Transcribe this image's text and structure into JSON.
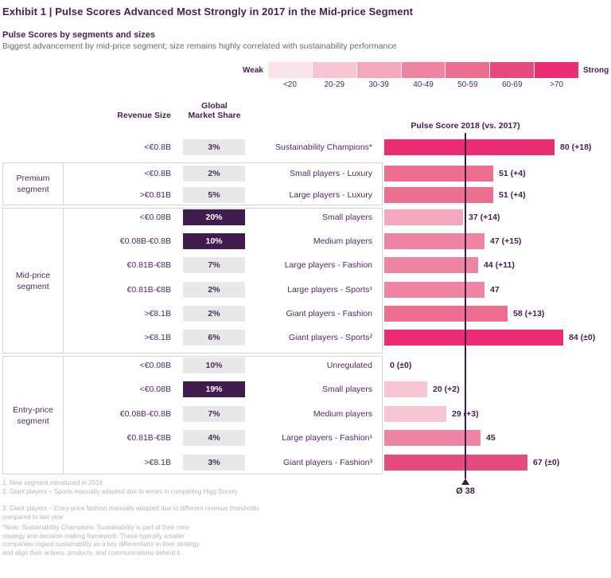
{
  "title": "Exhibit 1 | Pulse Scores Advanced Most Strongly in 2017 in the Mid-price Segment",
  "subtitle": "Pulse Scores by segments and sizes",
  "description": "Biggest advancement by mid-price segment; size remains highly correlated with sustainability performance",
  "columns": {
    "revenue": "Revenue Size",
    "market_share": "Global\nMarket Share",
    "score": "Pulse Score 2018 (vs. 2017)"
  },
  "chart_data": {
    "type": "bar",
    "title": "Pulse Score 2018 (vs. 2017)",
    "xlim": [
      0,
      100
    ],
    "grid": false,
    "legend": {
      "weak_label": "Weak",
      "strong_label": "Strong",
      "buckets": [
        {
          "label": "<20",
          "min": 0,
          "color": "#fbe3ec"
        },
        {
          "label": "20-29",
          "min": 20,
          "color": "#f8c5d4"
        },
        {
          "label": "30-39",
          "min": 30,
          "color": "#f3a8bd"
        },
        {
          "label": "40-49",
          "min": 40,
          "color": "#ef85a2"
        },
        {
          "label": "50-59",
          "min": 50,
          "color": "#ed6f90"
        },
        {
          "label": "60-69",
          "min": 60,
          "color": "#e74a7e"
        },
        {
          "label": ">70",
          "min": 70,
          "color": "#ec2d74"
        }
      ]
    },
    "average": {
      "label": "Ø 38",
      "value": 38
    },
    "groups": [
      {
        "segment": "",
        "rows": [
          {
            "revenue": "<€0.8B",
            "share": "3%",
            "share_highlight": false,
            "label": "Sustainability Champions*",
            "value": 80,
            "value_label": "80 (+18)"
          }
        ]
      },
      {
        "segment": "Premium\nsegment",
        "rows": [
          {
            "revenue": "<€0.8B",
            "share": "2%",
            "share_highlight": false,
            "label": "Small players - Luxury",
            "value": 51,
            "value_label": "51 (+4)"
          },
          {
            "revenue": ">€0.81B",
            "share": "5%",
            "share_highlight": false,
            "label": "Large players - Luxury",
            "value": 51,
            "value_label": "51 (+4)"
          }
        ]
      },
      {
        "segment": "Mid-price\nsegment",
        "rows": [
          {
            "revenue": "<€0.08B",
            "share": "20%",
            "share_highlight": true,
            "label": "Small players",
            "value": 37,
            "value_label": "37 (+14)"
          },
          {
            "revenue": "€0.08B-€0.8B",
            "share": "10%",
            "share_highlight": true,
            "label": "Medium players",
            "value": 47,
            "value_label": "47 (+15)"
          },
          {
            "revenue": "€0.81B-€8B",
            "share": "7%",
            "share_highlight": false,
            "label": "Large players - Fashion",
            "value": 44,
            "value_label": "44 (+11)"
          },
          {
            "revenue": "€0.81B-€8B",
            "share": "2%",
            "share_highlight": false,
            "label": "Large players - Sports¹",
            "value": 47,
            "value_label": "47"
          },
          {
            "revenue": ">€8.1B",
            "share": "2%",
            "share_highlight": false,
            "label": "Giant players - Fashion",
            "value": 58,
            "value_label": "58 (+13)"
          },
          {
            "revenue": ">€8.1B",
            "share": "6%",
            "share_highlight": false,
            "label": "Giant players - Sports²",
            "value": 84,
            "value_label": "84 (±0)"
          }
        ]
      },
      {
        "segment": "Entry-price\nsegment",
        "rows": [
          {
            "revenue": "<€0.08B",
            "share": "10%",
            "share_highlight": false,
            "label": "Unregulated",
            "value": 0,
            "value_label": "0 (±0)"
          },
          {
            "revenue": "<€0.08B",
            "share": "19%",
            "share_highlight": true,
            "label": "Small players",
            "value": 20,
            "value_label": "20 (+2)"
          },
          {
            "revenue": "€0.08B-€0.8B",
            "share": "7%",
            "share_highlight": false,
            "label": "Medium players",
            "value": 29,
            "value_label": "29 (+3)"
          },
          {
            "revenue": "€0.81B-€8B",
            "share": "4%",
            "share_highlight": false,
            "label": "Large players - Fashion¹",
            "value": 45,
            "value_label": "45"
          },
          {
            "revenue": ">€8.1B",
            "share": "3%",
            "share_highlight": false,
            "label": "Giant players - Fashion³",
            "value": 67,
            "value_label": "67 (±0)"
          }
        ]
      }
    ]
  },
  "footnotes": [
    "1. New segment introduced in 2018",
    "2. Giant players – Sports manually adapted due to errors in completing Higg Survey",
    "3. Giant players – Entry-price fashion manually adapted due to different revenue thresholds compared to last year"
  ],
  "note": "*Note: Sustainability Champions: Sustainability is part of their core strategy and decision-making framework. These typically smaller companies regard sustainability as a key differentiator in their strategy and align their actions, products, and communications behind it"
}
